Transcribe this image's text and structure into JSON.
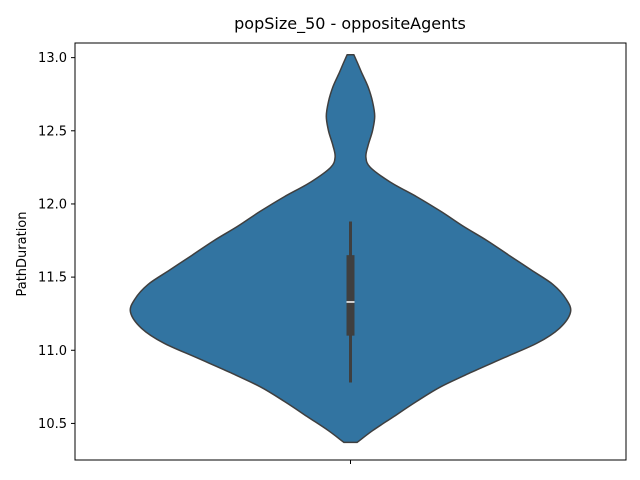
{
  "chart_data": {
    "type": "violin",
    "title": "popSize_50 - oppositeAgents",
    "xlabel": "",
    "ylabel": "PathDuration",
    "ylim": [
      10.25,
      13.1
    ],
    "yticks": [
      "10.5",
      "11.0",
      "11.5",
      "12.0",
      "12.5",
      "13.0"
    ],
    "ytick_values": [
      10.5,
      11.0,
      11.5,
      12.0,
      12.5,
      13.0
    ],
    "xtick_labels": [
      ""
    ],
    "grid": false,
    "violin_color": "#3274a1",
    "edge_color": "#3f3f3f",
    "range": {
      "min": 10.37,
      "max": 13.02
    },
    "density": [
      {
        "y": 10.37,
        "w": 0.03
      },
      {
        "y": 10.45,
        "w": 0.1
      },
      {
        "y": 10.55,
        "w": 0.2
      },
      {
        "y": 10.65,
        "w": 0.3
      },
      {
        "y": 10.75,
        "w": 0.41
      },
      {
        "y": 10.85,
        "w": 0.55
      },
      {
        "y": 10.95,
        "w": 0.7
      },
      {
        "y": 11.05,
        "w": 0.85
      },
      {
        "y": 11.15,
        "w": 0.95
      },
      {
        "y": 11.26,
        "w": 1.0
      },
      {
        "y": 11.35,
        "w": 0.98
      },
      {
        "y": 11.45,
        "w": 0.92
      },
      {
        "y": 11.55,
        "w": 0.82
      },
      {
        "y": 11.65,
        "w": 0.72
      },
      {
        "y": 11.75,
        "w": 0.62
      },
      {
        "y": 11.85,
        "w": 0.51
      },
      {
        "y": 11.95,
        "w": 0.41
      },
      {
        "y": 12.05,
        "w": 0.3
      },
      {
        "y": 12.15,
        "w": 0.18
      },
      {
        "y": 12.25,
        "w": 0.09
      },
      {
        "y": 12.32,
        "w": 0.07
      },
      {
        "y": 12.4,
        "w": 0.08
      },
      {
        "y": 12.5,
        "w": 0.1
      },
      {
        "y": 12.6,
        "w": 0.11
      },
      {
        "y": 12.7,
        "w": 0.1
      },
      {
        "y": 12.8,
        "w": 0.08
      },
      {
        "y": 12.9,
        "w": 0.05
      },
      {
        "y": 12.97,
        "w": 0.03
      },
      {
        "y": 13.02,
        "w": 0.015
      }
    ],
    "box": {
      "q1": 11.1,
      "median": 11.33,
      "q3": 11.65,
      "whisker_low": 10.78,
      "whisker_high": 11.88
    }
  }
}
